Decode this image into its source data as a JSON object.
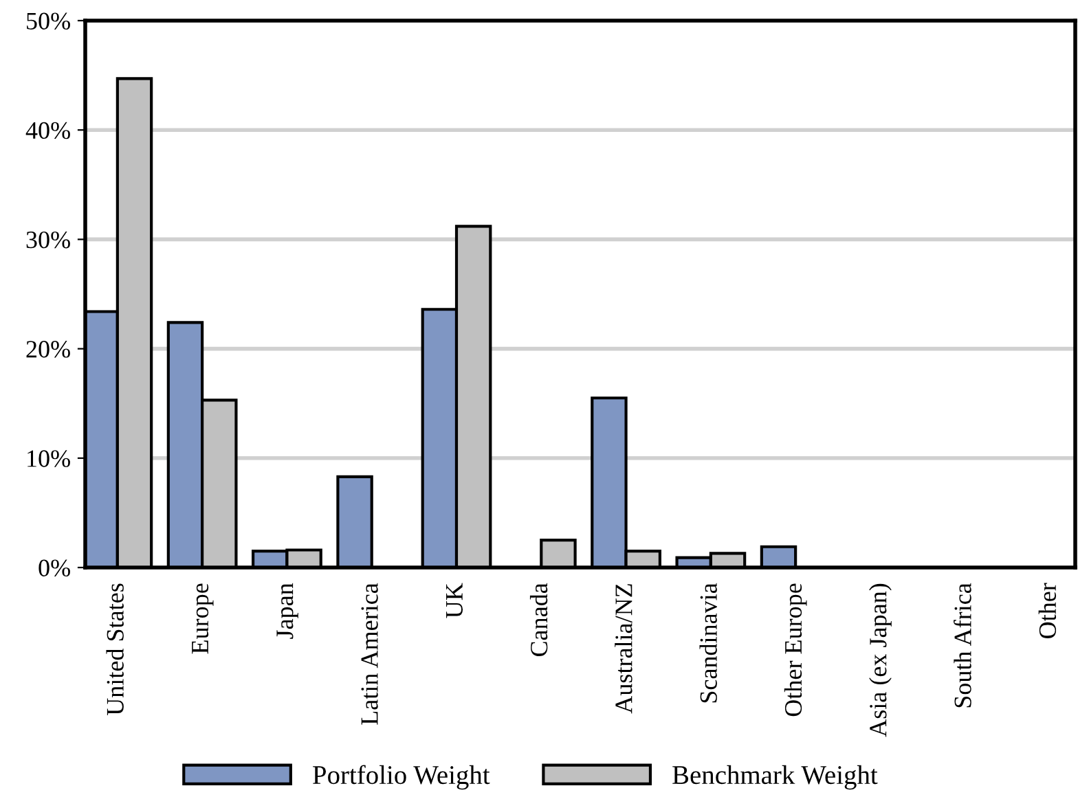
{
  "chart_data": {
    "type": "bar",
    "categories": [
      "United States",
      "Europe",
      "Japan",
      "Latin America",
      "UK",
      "Canada",
      "Australia/NZ",
      "Scandinavia",
      "Other Europe",
      "Asia (ex Japan)",
      "South Africa",
      "Other"
    ],
    "series": [
      {
        "name": "Portfolio Weight",
        "color": "#7f96c3",
        "values": [
          23.4,
          22.4,
          1.5,
          8.3,
          23.6,
          0,
          15.5,
          0.9,
          1.9,
          0,
          0,
          0
        ]
      },
      {
        "name": "Benchmark Weight",
        "color": "#c0c0c0",
        "values": [
          44.7,
          15.3,
          1.6,
          0,
          31.2,
          2.5,
          1.5,
          1.3,
          0,
          0,
          0,
          0
        ]
      }
    ],
    "ylim": [
      0,
      50
    ],
    "yticks": [
      {
        "value": 0,
        "label": "0%"
      },
      {
        "value": 10,
        "label": "10%"
      },
      {
        "value": 20,
        "label": "20%"
      },
      {
        "value": 30,
        "label": "30%"
      },
      {
        "value": 40,
        "label": "40%"
      },
      {
        "value": 50,
        "label": "50%"
      }
    ],
    "grid": "y",
    "legend": "bottom"
  }
}
